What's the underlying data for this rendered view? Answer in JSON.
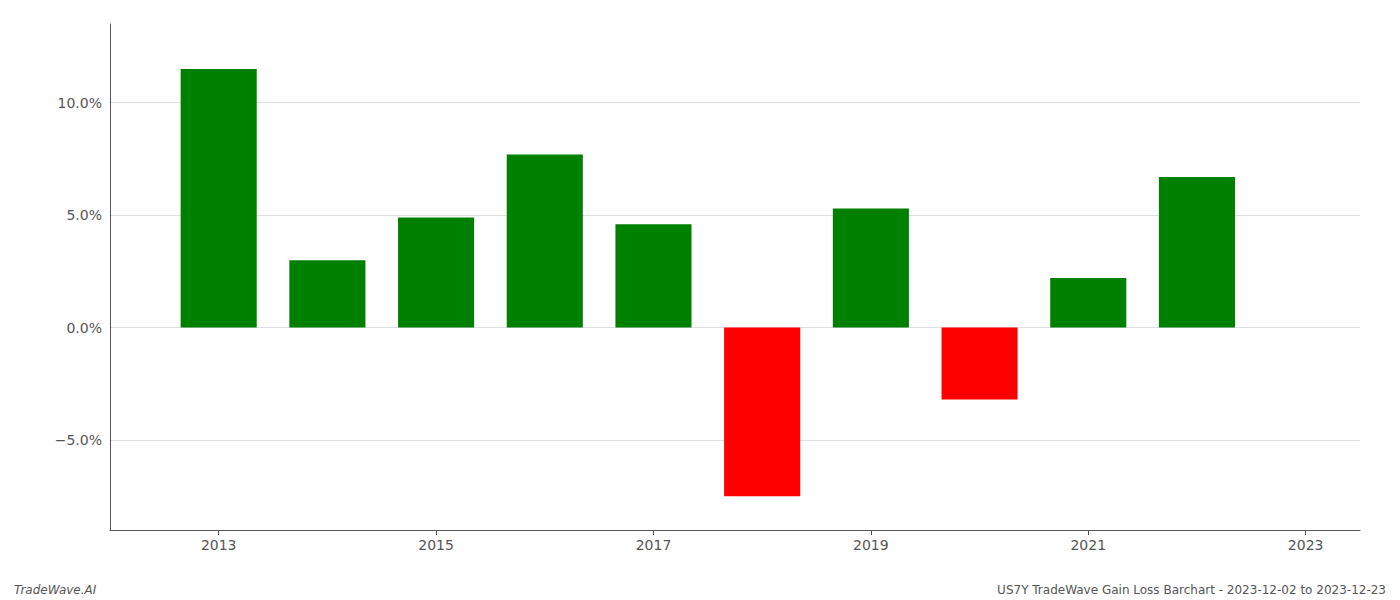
{
  "chart_data": {
    "type": "bar",
    "x": [
      2013,
      2014,
      2015,
      2016,
      2017,
      2018,
      2019,
      2020,
      2021,
      2022
    ],
    "values": [
      0.115,
      0.03,
      0.049,
      0.077,
      0.046,
      -0.075,
      0.053,
      -0.032,
      0.022,
      0.067
    ],
    "colors": [
      "#008000",
      "#008000",
      "#008000",
      "#008000",
      "#008000",
      "#ff0000",
      "#008000",
      "#ff0000",
      "#008000",
      "#008000"
    ],
    "xlim": [
      2012.0,
      2023.5
    ],
    "xticks": [
      2013,
      2015,
      2017,
      2019,
      2021,
      2023
    ],
    "ylim": [
      -0.09,
      0.135
    ],
    "yticks": [
      {
        "value": -0.05,
        "label": "−5.0%"
      },
      {
        "value": 0.0,
        "label": "0.0%"
      },
      {
        "value": 0.05,
        "label": "5.0%"
      },
      {
        "value": 0.1,
        "label": "10.0%"
      }
    ],
    "grid": true,
    "annotations": [
      "TradeWave.AI",
      "US7Y TradeWave Gain Loss Barchart - 2023-12-02 to 2023-12-23"
    ]
  }
}
